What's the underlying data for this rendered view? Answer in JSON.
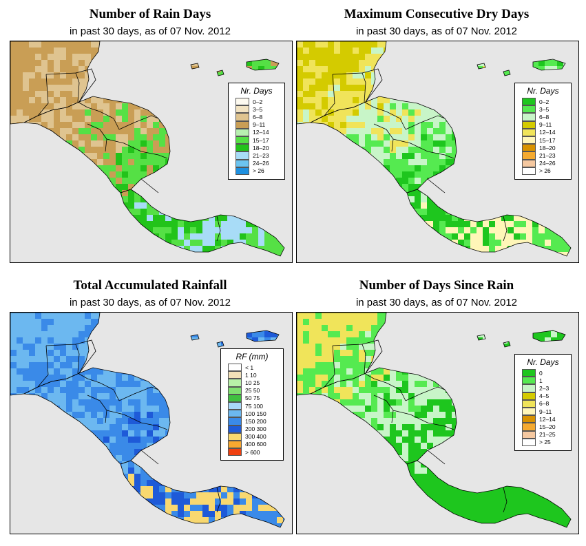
{
  "panels": [
    {
      "id": "rain-days",
      "title": "Number of Rain Days",
      "subtitle": "in past 30 days, as of  07 Nov. 2012",
      "legend": {
        "title": "Nr. Days",
        "items": [
          {
            "label": "0–2",
            "color": "#fdfaf0"
          },
          {
            "label": "3–5",
            "color": "#f2e3c2"
          },
          {
            "label": "6–8",
            "color": "#dfc490"
          },
          {
            "label": "9–11",
            "color": "#c99e55"
          },
          {
            "label": "12–14",
            "color": "#b8f0b0"
          },
          {
            "label": "15–17",
            "color": "#55e045"
          },
          {
            "label": "18–20",
            "color": "#22c31a"
          },
          {
            "label": "21–23",
            "color": "#a8dcf7"
          },
          {
            "label": "24–26",
            "color": "#6cc4f0"
          },
          {
            "label": "> 26",
            "color": "#1e90e0"
          }
        ]
      },
      "fill_colors": [
        "#c99e55",
        "#dfc490",
        "#c99e55",
        "#55e045",
        "#22c31a",
        "#a8dcf7",
        "#55e045"
      ]
    },
    {
      "id": "max-dry-days",
      "title": "Maximum Consecutive Dry Days",
      "subtitle": "in past 30 days, as of  07 Nov. 2012",
      "legend": {
        "title": "Nr. Days",
        "items": [
          {
            "label": "0–2",
            "color": "#1ec61e"
          },
          {
            "label": "3–5",
            "color": "#55ea50"
          },
          {
            "label": "6–8",
            "color": "#c8f5c8"
          },
          {
            "label": "9–11",
            "color": "#d4cb00"
          },
          {
            "label": "12–14",
            "color": "#f0e45a"
          },
          {
            "label": "15–17",
            "color": "#fff6b8"
          },
          {
            "label": "18–20",
            "color": "#d99200"
          },
          {
            "label": "21–23",
            "color": "#f5aa30"
          },
          {
            "label": "24–26",
            "color": "#f5c8a0"
          },
          {
            "label": "> 26",
            "color": "#ffffff"
          }
        ]
      },
      "fill_colors": [
        "#d4cb00",
        "#f0e45a",
        "#c8f5c8",
        "#55ea50",
        "#1ec61e",
        "#fff6b8",
        "#55ea50"
      ]
    },
    {
      "id": "total-rainfall",
      "title": "Total Accumulated Rainfall",
      "subtitle": "in past 30 days, as of  07 Nov. 2012",
      "legend": {
        "title": "RF (mm)",
        "items": [
          {
            "label": "< 1",
            "color": "#ffffff"
          },
          {
            "label": "1  10",
            "color": "#f2e0b8"
          },
          {
            "label": "10  25",
            "color": "#b8f0a8"
          },
          {
            "label": "25  50",
            "color": "#80e070"
          },
          {
            "label": "50  75",
            "color": "#40c040"
          },
          {
            "label": "75  100",
            "color": "#a8d8f8"
          },
          {
            "label": "100  150",
            "color": "#6cb8f0"
          },
          {
            "label": "150  200",
            "color": "#3a8ae8"
          },
          {
            "label": "200  300",
            "color": "#1e5ad8"
          },
          {
            "label": "300  400",
            "color": "#f8d870"
          },
          {
            "label": "400  600",
            "color": "#f8a830"
          },
          {
            "label": "> 600",
            "color": "#f04010"
          }
        ]
      },
      "fill_colors": [
        "#6cb8f0",
        "#3a8ae8",
        "#6cb8f0",
        "#3a8ae8",
        "#1e5ad8",
        "#f8d870",
        "#3a8ae8"
      ]
    },
    {
      "id": "days-since-rain",
      "title": "Number of Days Since Rain",
      "subtitle": "in past 30 days, as of  07 Nov. 2012",
      "legend": {
        "title": "Nr. Days",
        "items": [
          {
            "label": "0",
            "color": "#1ec61e"
          },
          {
            "label": "1",
            "color": "#55ea50"
          },
          {
            "label": "2–3",
            "color": "#c8f5c8"
          },
          {
            "label": "4–5",
            "color": "#d4cb00"
          },
          {
            "label": "6–8",
            "color": "#f0e45a"
          },
          {
            "label": "9–11",
            "color": "#fff6b8"
          },
          {
            "label": "12–14",
            "color": "#d99200"
          },
          {
            "label": "15–20",
            "color": "#f5aa30"
          },
          {
            "label": "21–25",
            "color": "#f5c8a0"
          },
          {
            "label": "> 25",
            "color": "#ffffff"
          }
        ]
      },
      "fill_colors": [
        "#f0e45a",
        "#55ea50",
        "#c8f5c8",
        "#1ec61e",
        "#1ec61e",
        "#1ec61e",
        "#1ec61e"
      ]
    }
  ],
  "colors": {
    "ocean": "#e6e6e6",
    "border": "#000000"
  }
}
